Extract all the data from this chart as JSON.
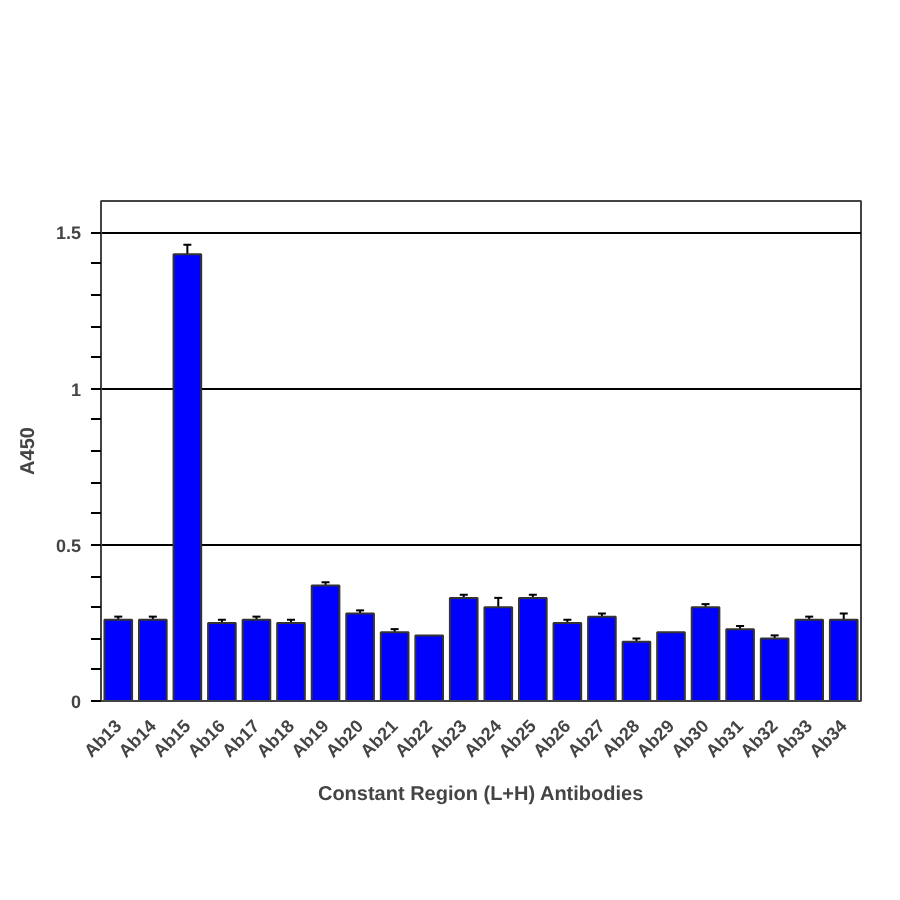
{
  "chart_data": {
    "type": "bar",
    "xlabel": "Constant Region (L+H) Antibodies",
    "ylabel": "A450",
    "categories": [
      "Ab13",
      "Ab14",
      "Ab15",
      "Ab16",
      "Ab17",
      "Ab18",
      "Ab19",
      "Ab20",
      "Ab21",
      "Ab22",
      "Ab23",
      "Ab24",
      "Ab25",
      "Ab26",
      "Ab27",
      "Ab28",
      "Ab29",
      "Ab30",
      "Ab31",
      "Ab32",
      "Ab33",
      "Ab34"
    ],
    "values": [
      0.26,
      0.26,
      1.43,
      0.25,
      0.26,
      0.25,
      0.37,
      0.28,
      0.22,
      0.21,
      0.33,
      0.3,
      0.33,
      0.25,
      0.27,
      0.19,
      0.22,
      0.3,
      0.23,
      0.2,
      0.26,
      0.26
    ],
    "errors": [
      0.01,
      0.01,
      0.03,
      0.01,
      0.01,
      0.01,
      0.01,
      0.01,
      0.01,
      null,
      0.01,
      0.03,
      0.01,
      0.01,
      0.01,
      0.01,
      null,
      0.01,
      0.01,
      0.01,
      0.01,
      0.02
    ],
    "color": "#0000ff",
    "ylim": [
      0,
      1.6
    ],
    "yticks": [
      0,
      {
        "value": 0.1,
        "label": null
      },
      {
        "value": 0.2,
        "label": null
      },
      {
        "value": 0.3,
        "label": null
      },
      {
        "value": 0.4,
        "label": null
      },
      0.5,
      {
        "value": 0.6,
        "label": null
      },
      {
        "value": 0.7,
        "label": null
      },
      {
        "value": 0.8,
        "label": null
      },
      {
        "value": 0.9,
        "label": null
      },
      1,
      {
        "value": 1.1,
        "label": null
      },
      {
        "value": 1.2,
        "label": null
      },
      {
        "value": 1.3,
        "label": null
      },
      {
        "value": 1.4,
        "label": null
      },
      1.5
    ],
    "grid": "y"
  }
}
